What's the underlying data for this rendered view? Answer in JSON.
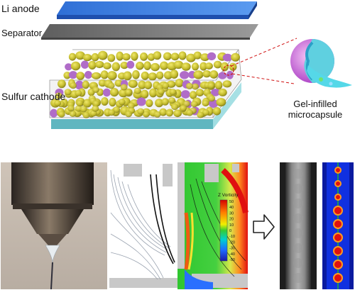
{
  "top_panel": {
    "layers": {
      "anode_label": "Li anode",
      "separator_label": "Separator",
      "cathode_label": "Sulfur cathode"
    },
    "callout_label_line1": "Gel-infilled",
    "callout_label_line2": "microcapsule"
  },
  "bottom_panel": {
    "colorbar_title": "Z Vorticity",
    "colorbar_ticks": [
      "50",
      "40",
      "30",
      "20",
      "10",
      "0",
      "-10",
      "-20",
      "-30",
      "-40",
      "-50"
    ],
    "arrow_icon": "outline-right-arrow-icon"
  },
  "colors": {
    "anode": "#3f7fe0",
    "separator": "#6e6e6e",
    "cathode_base": "#7fd0d6",
    "particles": "#c7c23b",
    "vorticity_field": "#33cc33"
  }
}
